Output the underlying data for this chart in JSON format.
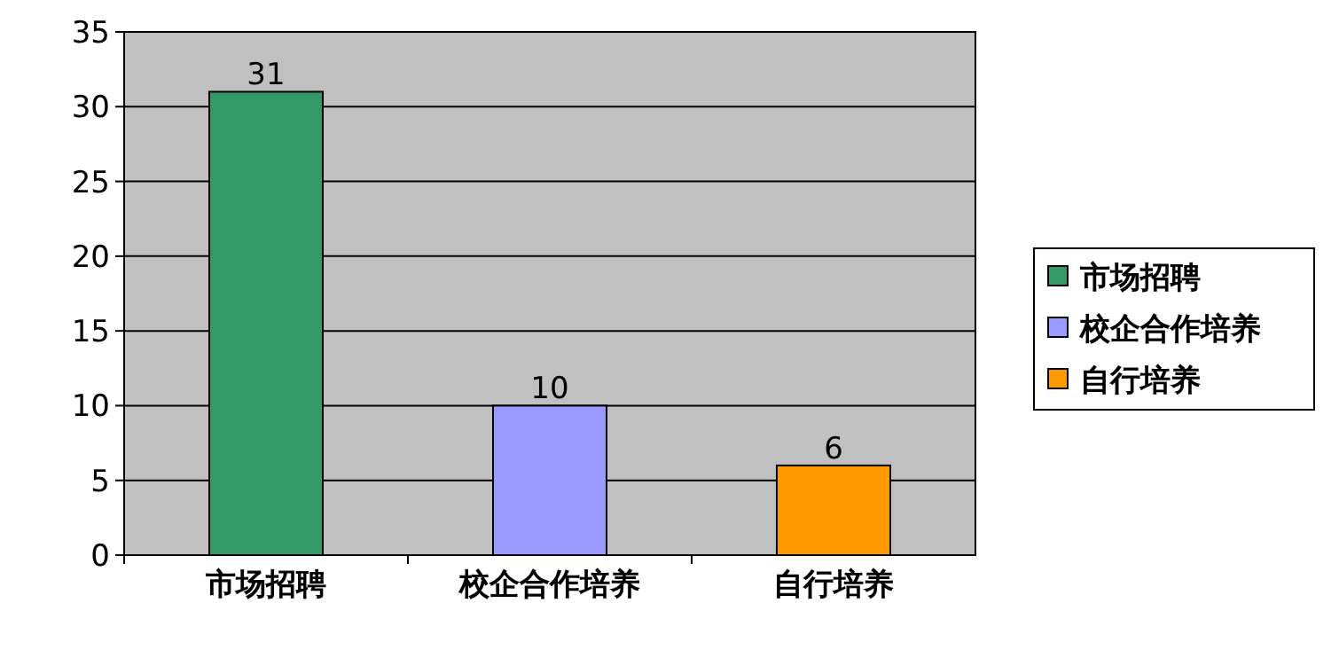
{
  "chart_data": {
    "type": "bar",
    "categories": [
      "市场招聘",
      "校企合作培养",
      "自行培养"
    ],
    "series": [
      {
        "name": "市场招聘",
        "color": "#339966",
        "values": [
          31,
          null,
          null
        ]
      },
      {
        "name": "校企合作培养",
        "color": "#9999ff",
        "values": [
          null,
          10,
          null
        ]
      },
      {
        "name": "自行培养",
        "color": "#ff9900",
        "values": [
          null,
          null,
          6
        ]
      }
    ],
    "ylim": [
      0,
      35
    ],
    "yticks": [
      0,
      5,
      10,
      15,
      20,
      25,
      30,
      35
    ],
    "grid": "y",
    "legend": "right",
    "data_labels": true
  }
}
